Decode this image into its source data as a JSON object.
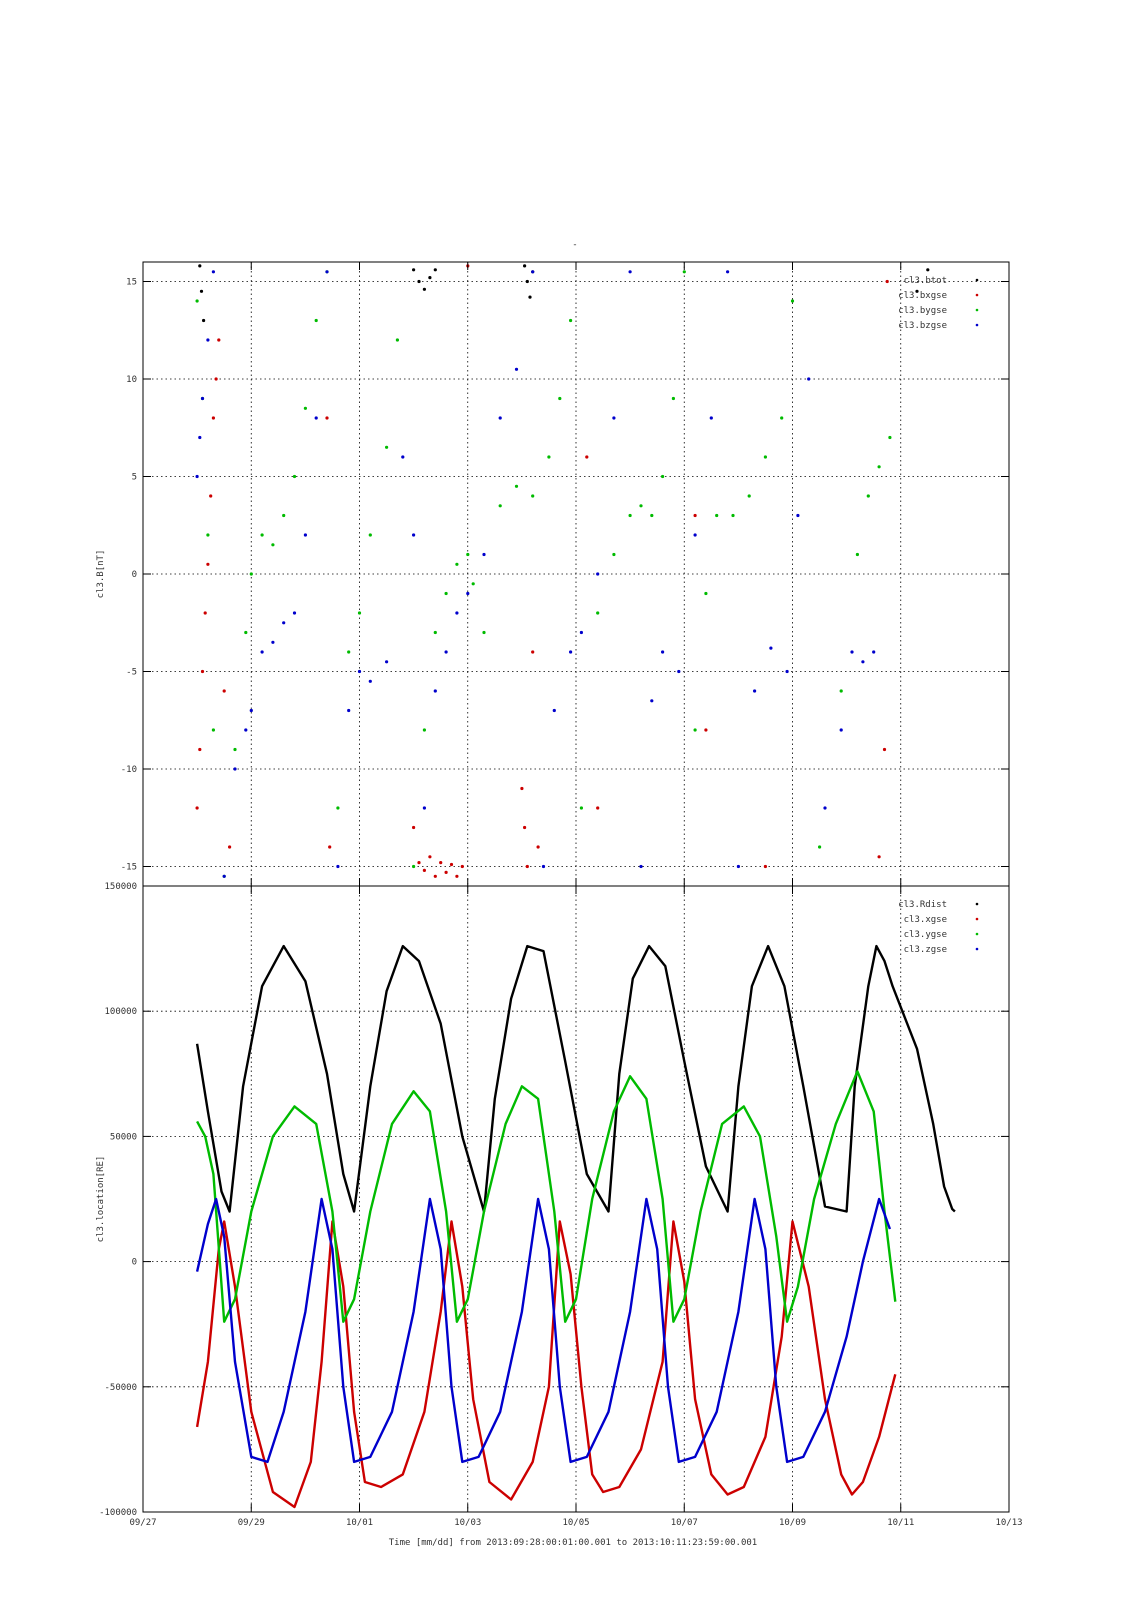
{
  "figure": {
    "title": "-",
    "xlabel": "Time [mm/dd]  from 2013:09:28:00:01:00.001  to  2013:10:11:23:59:00.001"
  },
  "chart_data": [
    {
      "type": "scatter",
      "title": "-",
      "xlabel": "",
      "ylabel": "cl3.B[nT]",
      "x_unit": "days since 09/27 00:00",
      "xlim": [
        0,
        16
      ],
      "ylim": [
        -16,
        16
      ],
      "xticks": [
        0,
        2,
        4,
        6,
        8,
        10,
        12,
        14,
        16
      ],
      "yticks": [
        -15,
        -10,
        -5,
        0,
        5,
        10,
        15
      ],
      "yticklabels": [
        "-15",
        "-10",
        "-5",
        "0",
        "5",
        "10",
        "15"
      ],
      "grid": true,
      "legend_position": "top-right",
      "series": [
        {
          "name": "cl3.btot",
          "color": "#000000",
          "x": [
            1.05,
            1.08,
            1.12,
            7.05,
            7.1,
            7.15,
            7.2,
            5.0,
            5.1,
            5.2,
            5.3,
            5.4,
            14.3,
            14.5
          ],
          "y": [
            15.8,
            14.5,
            13.0,
            15.8,
            15.0,
            14.2,
            15.5,
            15.6,
            15.0,
            14.6,
            15.2,
            15.6,
            14.5,
            15.6
          ]
        },
        {
          "name": "cl3.bxgse",
          "color": "#cc0000",
          "x": [
            1.0,
            1.05,
            1.1,
            1.15,
            1.2,
            1.25,
            1.3,
            1.35,
            1.4,
            1.5,
            1.6,
            3.4,
            3.45,
            5.0,
            5.1,
            5.2,
            5.3,
            5.4,
            5.5,
            5.6,
            5.7,
            5.8,
            5.9,
            6.0,
            7.0,
            7.05,
            7.1,
            7.2,
            7.3,
            8.2,
            8.4,
            10.2,
            10.4,
            11.5,
            13.6,
            13.7,
            13.75
          ],
          "y": [
            -12.0,
            -9.0,
            -5.0,
            -2.0,
            0.5,
            4.0,
            8.0,
            10.0,
            12.0,
            -6.0,
            -14.0,
            8.0,
            -14.0,
            -13.0,
            -14.8,
            -15.2,
            -14.5,
            -15.5,
            -14.8,
            -15.3,
            -14.9,
            -15.5,
            -15.0,
            15.8,
            -11.0,
            -13.0,
            -15.0,
            -4.0,
            -14.0,
            6.0,
            -12.0,
            3.0,
            -8.0,
            -15.0,
            -14.5,
            -9.0,
            15.0
          ]
        },
        {
          "name": "cl3.bygse",
          "color": "#00bb00",
          "x": [
            1.0,
            1.1,
            1.2,
            1.3,
            1.5,
            1.7,
            1.9,
            2.0,
            2.2,
            2.4,
            2.6,
            2.8,
            3.0,
            3.2,
            3.4,
            3.6,
            3.8,
            4.0,
            4.2,
            4.5,
            4.7,
            5.0,
            5.2,
            5.4,
            5.6,
            5.8,
            6.0,
            6.1,
            6.3,
            6.6,
            6.9,
            7.2,
            7.5,
            7.7,
            7.9,
            8.1,
            8.4,
            8.7,
            9.0,
            9.2,
            9.4,
            9.6,
            9.8,
            10.0,
            10.2,
            10.4,
            10.6,
            10.9,
            11.2,
            11.5,
            11.8,
            12.0,
            12.5,
            12.9,
            13.2,
            13.4,
            13.6,
            13.8
          ],
          "y": [
            14.0,
            9.0,
            2.0,
            -8.0,
            -15.5,
            -9.0,
            -3.0,
            0.0,
            2.0,
            1.5,
            3.0,
            5.0,
            8.5,
            13.0,
            15.5,
            -12.0,
            -4.0,
            -2.0,
            2.0,
            6.5,
            12.0,
            -15.0,
            -8.0,
            -3.0,
            -1.0,
            0.5,
            1.0,
            -0.5,
            -3.0,
            3.5,
            4.5,
            4.0,
            6.0,
            9.0,
            13.0,
            -12.0,
            -2.0,
            1.0,
            3.0,
            3.5,
            3.0,
            5.0,
            9.0,
            15.5,
            -8.0,
            -1.0,
            3.0,
            3.0,
            4.0,
            6.0,
            8.0,
            14.0,
            -14.0,
            -6.0,
            1.0,
            4.0,
            5.5,
            7.0
          ]
        },
        {
          "name": "cl3.bzgse",
          "color": "#0000cc",
          "x": [
            1.0,
            1.05,
            1.1,
            1.2,
            1.3,
            1.5,
            1.7,
            1.9,
            2.0,
            2.2,
            2.4,
            2.6,
            2.8,
            3.0,
            3.2,
            3.4,
            3.6,
            3.8,
            4.0,
            4.2,
            4.5,
            4.8,
            5.0,
            5.2,
            5.4,
            5.6,
            5.8,
            6.0,
            6.3,
            6.6,
            6.9,
            7.2,
            7.4,
            7.6,
            7.9,
            8.1,
            8.4,
            8.7,
            9.0,
            9.2,
            9.4,
            9.6,
            9.9,
            10.2,
            10.5,
            10.8,
            11.0,
            11.3,
            11.6,
            11.9,
            12.1,
            12.3,
            12.6,
            12.9,
            13.1,
            13.3,
            13.5
          ],
          "y": [
            5.0,
            7.0,
            9.0,
            12.0,
            15.5,
            -15.5,
            -10.0,
            -8.0,
            -7.0,
            -4.0,
            -3.5,
            -2.5,
            -2.0,
            2.0,
            8.0,
            15.5,
            -15.0,
            -7.0,
            -5.0,
            -5.5,
            -4.5,
            6.0,
            2.0,
            -12.0,
            -6.0,
            -4.0,
            -2.0,
            -1.0,
            1.0,
            8.0,
            10.5,
            15.5,
            -15.0,
            -7.0,
            -4.0,
            -3.0,
            0.0,
            8.0,
            15.5,
            -15.0,
            -6.5,
            -4.0,
            -5.0,
            2.0,
            8.0,
            15.5,
            -15.0,
            -6.0,
            -3.8,
            -5.0,
            3.0,
            10.0,
            -12.0,
            -8.0,
            -4.0,
            -4.5,
            -4.0
          ]
        }
      ]
    },
    {
      "type": "line",
      "xlabel": "Time [mm/dd]  from 2013:09:28:00:01:00.001  to  2013:10:11:23:59:00.001",
      "ylabel": "cl3.location[RE]",
      "x_unit": "days since 09/27 00:00",
      "xlim": [
        0,
        16
      ],
      "ylim": [
        -100000,
        150000
      ],
      "xticks": [
        0,
        2,
        4,
        6,
        8,
        10,
        12,
        14,
        16
      ],
      "xticklabels": [
        "09/27",
        "09/29",
        "10/01",
        "10/03",
        "10/05",
        "10/07",
        "10/09",
        "10/11",
        "10/13"
      ],
      "yticks": [
        -100000,
        -50000,
        0,
        50000,
        100000,
        150000
      ],
      "yticklabels": [
        "-100000",
        "-50000",
        "0",
        "50000",
        "100000",
        "150000"
      ],
      "grid": true,
      "legend_position": "top-right",
      "series": [
        {
          "name": "cl3.Rdist",
          "color": "#000000",
          "x": [
            1.0,
            1.2,
            1.45,
            1.6,
            1.85,
            2.2,
            2.6,
            3.0,
            3.4,
            3.7,
            3.9,
            4.2,
            4.5,
            4.8,
            5.1,
            5.5,
            5.9,
            6.3,
            6.5,
            6.8,
            7.1,
            7.4,
            7.8,
            8.2,
            8.6,
            8.8,
            9.05,
            9.35,
            9.65,
            10.0,
            10.4,
            10.8,
            11.0,
            11.25,
            11.55,
            11.85,
            12.2,
            12.6,
            13.0,
            13.15,
            13.4,
            13.55,
            13.7,
            13.85,
            14.3,
            14.6,
            14.8,
            14.95,
            15.0
          ],
          "y": [
            87000,
            60000,
            28000,
            20000,
            70000,
            110000,
            126000,
            112000,
            75000,
            35000,
            20000,
            70000,
            108000,
            126000,
            120000,
            95000,
            50000,
            20000,
            65000,
            105000,
            126000,
            124000,
            80000,
            35000,
            20000,
            75000,
            113000,
            126000,
            118000,
            80000,
            38000,
            20000,
            70000,
            110000,
            126000,
            110000,
            70000,
            22000,
            20000,
            70000,
            110000,
            126000,
            120000,
            110000,
            85000,
            55000,
            30000,
            21000,
            20000
          ]
        },
        {
          "name": "cl3.xgse",
          "color": "#cc0000",
          "x": [
            1.0,
            1.2,
            1.4,
            1.5,
            1.7,
            2.0,
            2.4,
            2.8,
            3.1,
            3.3,
            3.5,
            3.7,
            3.9,
            4.1,
            4.4,
            4.8,
            5.2,
            5.5,
            5.7,
            5.9,
            6.1,
            6.4,
            6.8,
            7.2,
            7.5,
            7.7,
            7.9,
            8.1,
            8.3,
            8.5,
            8.8,
            9.2,
            9.6,
            9.8,
            10.0,
            10.2,
            10.5,
            10.8,
            11.1,
            11.5,
            11.8,
            12.0,
            12.3,
            12.6,
            12.9,
            13.1,
            13.3,
            13.6,
            13.9
          ],
          "y": [
            -66000,
            -40000,
            5000,
            16000,
            -10000,
            -60000,
            -92000,
            -98000,
            -80000,
            -40000,
            16000,
            -10000,
            -60000,
            -88000,
            -90000,
            -85000,
            -60000,
            -20000,
            16000,
            -10000,
            -55000,
            -88000,
            -95000,
            -80000,
            -50000,
            16000,
            -5000,
            -50000,
            -85000,
            -92000,
            -90000,
            -75000,
            -40000,
            16000,
            -8000,
            -55000,
            -85000,
            -93000,
            -90000,
            -70000,
            -30000,
            16000,
            -10000,
            -55000,
            -85000,
            -93000,
            -88000,
            -70000,
            -45000
          ]
        },
        {
          "name": "cl3.ygse",
          "color": "#00bb00",
          "x": [
            1.0,
            1.15,
            1.3,
            1.5,
            1.7,
            2.0,
            2.4,
            2.8,
            3.2,
            3.5,
            3.7,
            3.9,
            4.2,
            4.6,
            5.0,
            5.3,
            5.6,
            5.8,
            6.0,
            6.3,
            6.7,
            7.0,
            7.3,
            7.6,
            7.8,
            8.0,
            8.3,
            8.7,
            9.0,
            9.3,
            9.6,
            9.8,
            10.0,
            10.3,
            10.7,
            11.1,
            11.4,
            11.7,
            11.9,
            12.1,
            12.4,
            12.8,
            13.2,
            13.5,
            13.7,
            13.9
          ],
          "y": [
            56000,
            50000,
            35000,
            -24000,
            -15000,
            20000,
            50000,
            62000,
            55000,
            20000,
            -24000,
            -15000,
            20000,
            55000,
            68000,
            60000,
            20000,
            -24000,
            -15000,
            20000,
            55000,
            70000,
            65000,
            20000,
            -24000,
            -15000,
            25000,
            60000,
            74000,
            65000,
            25000,
            -24000,
            -15000,
            20000,
            55000,
            62000,
            50000,
            10000,
            -24000,
            -10000,
            25000,
            55000,
            76000,
            60000,
            20000,
            -16000
          ]
        },
        {
          "name": "cl3.zgse",
          "color": "#0000cc",
          "x": [
            1.0,
            1.2,
            1.35,
            1.5,
            1.7,
            2.0,
            2.3,
            2.6,
            3.0,
            3.3,
            3.5,
            3.7,
            3.9,
            4.2,
            4.6,
            5.0,
            5.3,
            5.5,
            5.7,
            5.9,
            6.2,
            6.6,
            7.0,
            7.3,
            7.5,
            7.7,
            7.9,
            8.2,
            8.6,
            9.0,
            9.3,
            9.5,
            9.7,
            9.9,
            10.2,
            10.6,
            11.0,
            11.3,
            11.5,
            11.7,
            11.9,
            12.2,
            12.6,
            13.0,
            13.3,
            13.6,
            13.8
          ],
          "y": [
            -4000,
            15000,
            25000,
            10000,
            -40000,
            -78000,
            -80000,
            -60000,
            -20000,
            25000,
            5000,
            -50000,
            -80000,
            -78000,
            -60000,
            -20000,
            25000,
            5000,
            -50000,
            -80000,
            -78000,
            -60000,
            -20000,
            25000,
            5000,
            -50000,
            -80000,
            -78000,
            -60000,
            -20000,
            25000,
            5000,
            -50000,
            -80000,
            -78000,
            -60000,
            -20000,
            25000,
            5000,
            -50000,
            -80000,
            -78000,
            -60000,
            -30000,
            0,
            25000,
            13000
          ]
        }
      ]
    }
  ]
}
